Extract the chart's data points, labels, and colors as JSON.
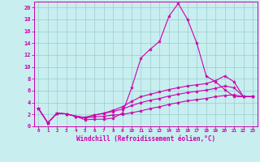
{
  "background_color": "#c8eef0",
  "grid_color": "#99cccc",
  "line_color": "#cc00aa",
  "xlabel": "Windchill (Refroidissement éolien,°C)",
  "xlim": [
    -0.5,
    23.5
  ],
  "ylim": [
    0,
    21
  ],
  "xticks": [
    0,
    1,
    2,
    3,
    4,
    5,
    6,
    7,
    8,
    9,
    10,
    11,
    12,
    13,
    14,
    15,
    16,
    17,
    18,
    19,
    20,
    21,
    22,
    23
  ],
  "yticks": [
    0,
    2,
    4,
    6,
    8,
    10,
    12,
    14,
    16,
    18,
    20
  ],
  "curve1_x": [
    0,
    1,
    2,
    3,
    4,
    5,
    6,
    7,
    8,
    9,
    10,
    11,
    12,
    13,
    14,
    15,
    16,
    17,
    18,
    19,
    20,
    21,
    22,
    23
  ],
  "curve1_y": [
    3.0,
    0.6,
    2.2,
    2.1,
    1.7,
    1.1,
    1.2,
    1.2,
    1.4,
    2.2,
    6.5,
    11.5,
    13.0,
    14.3,
    18.5,
    20.7,
    18.0,
    14.0,
    8.5,
    7.5,
    6.2,
    5.0,
    5.0,
    5.0
  ],
  "curve2_x": [
    0,
    1,
    2,
    3,
    4,
    5,
    6,
    7,
    8,
    9,
    10,
    11,
    12,
    13,
    14,
    15,
    16,
    17,
    18,
    19,
    20,
    21,
    22,
    23
  ],
  "curve2_y": [
    3.0,
    0.6,
    2.2,
    2.1,
    1.7,
    1.5,
    1.9,
    2.2,
    2.7,
    3.3,
    4.2,
    5.0,
    5.4,
    5.8,
    6.2,
    6.5,
    6.8,
    7.0,
    7.2,
    7.7,
    8.5,
    7.5,
    5.0,
    5.0
  ],
  "curve3_x": [
    0,
    1,
    2,
    3,
    4,
    5,
    6,
    7,
    8,
    9,
    10,
    11,
    12,
    13,
    14,
    15,
    16,
    17,
    18,
    19,
    20,
    21,
    22,
    23
  ],
  "curve3_y": [
    3.0,
    0.6,
    2.2,
    2.1,
    1.7,
    1.5,
    1.9,
    2.2,
    2.5,
    2.9,
    3.5,
    4.0,
    4.4,
    4.7,
    5.1,
    5.4,
    5.7,
    5.9,
    6.1,
    6.4,
    6.8,
    6.5,
    5.0,
    5.0
  ],
  "curve4_x": [
    0,
    1,
    2,
    3,
    4,
    5,
    6,
    7,
    8,
    9,
    10,
    11,
    12,
    13,
    14,
    15,
    16,
    17,
    18,
    19,
    20,
    21,
    22,
    23
  ],
  "curve4_y": [
    3.0,
    0.6,
    2.2,
    2.1,
    1.7,
    1.4,
    1.6,
    1.7,
    1.9,
    2.0,
    2.3,
    2.6,
    3.0,
    3.3,
    3.7,
    4.0,
    4.3,
    4.5,
    4.7,
    5.0,
    5.2,
    5.3,
    5.0,
    5.0
  ]
}
